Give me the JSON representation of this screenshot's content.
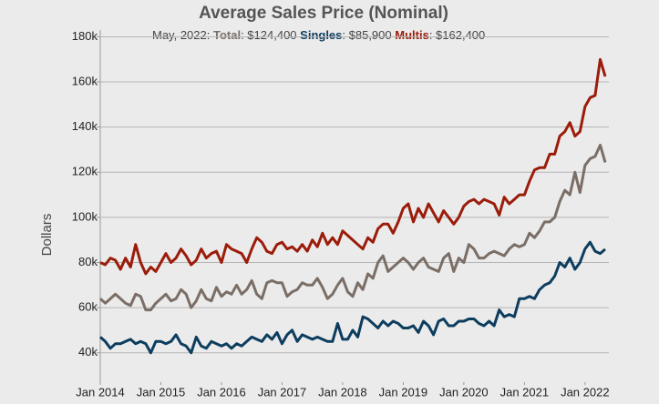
{
  "chart_data": {
    "type": "line",
    "title": "Average Sales Price (Nominal)",
    "annotation": {
      "date": "May, 2022:",
      "values": [
        ": $124,400",
        ": $85,900",
        ": $162,400"
      ]
    },
    "y_label": "Dollars",
    "x": [
      "2014-01",
      "2014-02",
      "2014-03",
      "2014-04",
      "2014-05",
      "2014-06",
      "2014-07",
      "2014-08",
      "2014-09",
      "2014-10",
      "2014-11",
      "2014-12",
      "2015-01",
      "2015-02",
      "2015-03",
      "2015-04",
      "2015-05",
      "2015-06",
      "2015-07",
      "2015-08",
      "2015-09",
      "2015-10",
      "2015-11",
      "2015-12",
      "2016-01",
      "2016-02",
      "2016-03",
      "2016-04",
      "2016-05",
      "2016-06",
      "2016-07",
      "2016-08",
      "2016-09",
      "2016-10",
      "2016-11",
      "2016-12",
      "2017-01",
      "2017-02",
      "2017-03",
      "2017-04",
      "2017-05",
      "2017-06",
      "2017-07",
      "2017-08",
      "2017-09",
      "2017-10",
      "2017-11",
      "2017-12",
      "2018-01",
      "2018-02",
      "2018-03",
      "2018-04",
      "2018-05",
      "2018-06",
      "2018-07",
      "2018-08",
      "2018-09",
      "2018-10",
      "2018-11",
      "2018-12",
      "2019-01",
      "2019-02",
      "2019-03",
      "2019-04",
      "2019-05",
      "2019-06",
      "2019-07",
      "2019-08",
      "2019-09",
      "2019-10",
      "2019-11",
      "2019-12",
      "2020-01",
      "2020-02",
      "2020-03",
      "2020-04",
      "2020-05",
      "2020-06",
      "2020-07",
      "2020-08",
      "2020-09",
      "2020-10",
      "2020-11",
      "2020-12",
      "2021-01",
      "2021-02",
      "2021-03",
      "2021-04",
      "2021-05",
      "2021-06",
      "2021-07",
      "2021-08",
      "2021-09",
      "2021-10",
      "2021-11",
      "2021-12",
      "2022-01",
      "2022-02",
      "2022-03",
      "2022-04",
      "2022-05"
    ],
    "xlim": [
      "2014-01",
      "2022-05"
    ],
    "xticks": [
      {
        "value": "2014-01",
        "label": "Jan 2014"
      },
      {
        "value": "2015-01",
        "label": "Jan 2015"
      },
      {
        "value": "2016-01",
        "label": "Jan 2016"
      },
      {
        "value": "2017-01",
        "label": "Jan 2017"
      },
      {
        "value": "2018-01",
        "label": "Jan 2018"
      },
      {
        "value": "2019-01",
        "label": "Jan 2019"
      },
      {
        "value": "2020-01",
        "label": "Jan 2020"
      },
      {
        "value": "2021-01",
        "label": "Jan 2021"
      },
      {
        "value": "2022-01",
        "label": "Jan 2022"
      }
    ],
    "ylim": [
      27000,
      183000
    ],
    "yticks": [
      {
        "value": 40000,
        "label": "40k"
      },
      {
        "value": 60000,
        "label": "60k"
      },
      {
        "value": 80000,
        "label": "80k"
      },
      {
        "value": 100000,
        "label": "100k"
      },
      {
        "value": 120000,
        "label": "120k"
      },
      {
        "value": 140000,
        "label": "140k"
      },
      {
        "value": 160000,
        "label": "160k"
      },
      {
        "value": 180000,
        "label": "180k"
      }
    ],
    "grid": true,
    "series": [
      {
        "name": "Total",
        "color": "#7a6e66",
        "values": [
          64000,
          62000,
          64000,
          66000,
          64000,
          62000,
          61000,
          66000,
          65000,
          59000,
          59000,
          62000,
          64000,
          66000,
          63000,
          64000,
          68000,
          66000,
          60000,
          63000,
          68000,
          64000,
          63000,
          69000,
          65000,
          67000,
          66000,
          70000,
          66000,
          68000,
          72000,
          66000,
          64000,
          71000,
          72000,
          71000,
          71000,
          65000,
          67000,
          68000,
          71000,
          70000,
          70000,
          73000,
          69000,
          64000,
          66000,
          70000,
          73000,
          67000,
          65000,
          71000,
          68000,
          75000,
          73000,
          80000,
          83000,
          76000,
          78000,
          80000,
          82000,
          80000,
          77000,
          80000,
          82000,
          78000,
          77000,
          76000,
          82000,
          84000,
          76000,
          82000,
          80000,
          88000,
          86000,
          82000,
          82000,
          84000,
          85000,
          84000,
          83000,
          86000,
          88000,
          87000,
          88000,
          93000,
          91000,
          94000,
          98000,
          98000,
          100000,
          107000,
          112000,
          110000,
          120000,
          111000,
          123000,
          126000,
          127000,
          132000,
          124400
        ]
      },
      {
        "name": "Singles",
        "color": "#0d3d5e",
        "values": [
          47000,
          45000,
          42000,
          44000,
          44000,
          45000,
          46000,
          44000,
          45000,
          44000,
          40000,
          45000,
          45000,
          44000,
          45000,
          48000,
          44000,
          43000,
          40000,
          47000,
          43000,
          42000,
          45000,
          44000,
          43000,
          44000,
          42000,
          44000,
          43000,
          45000,
          47000,
          46000,
          45000,
          48000,
          46000,
          49000,
          44000,
          48000,
          50000,
          45000,
          48000,
          47000,
          46000,
          47000,
          46000,
          45000,
          45000,
          53000,
          46000,
          46000,
          50000,
          47000,
          56000,
          55000,
          53000,
          51000,
          54000,
          52000,
          54000,
          53000,
          51000,
          51000,
          52000,
          49000,
          54000,
          52000,
          48000,
          54000,
          55000,
          52000,
          52000,
          54000,
          54000,
          55000,
          55000,
          53000,
          52000,
          54000,
          52000,
          59000,
          56000,
          57000,
          56000,
          64000,
          64000,
          65000,
          64000,
          68000,
          70000,
          71000,
          74000,
          80000,
          78000,
          82000,
          77000,
          80000,
          86000,
          89000,
          85000,
          84000,
          85900
        ]
      },
      {
        "name": "Multis",
        "color": "#9b1c0a",
        "values": [
          80000,
          79000,
          82000,
          81000,
          77000,
          82000,
          78000,
          88000,
          80000,
          75000,
          78000,
          76000,
          80000,
          84000,
          80000,
          82000,
          86000,
          83000,
          79000,
          81000,
          86000,
          82000,
          84000,
          85000,
          80000,
          88000,
          86000,
          85000,
          84000,
          80000,
          86000,
          91000,
          89000,
          85000,
          84000,
          88000,
          89000,
          86000,
          87000,
          85000,
          88000,
          85000,
          90000,
          87000,
          93000,
          88000,
          91000,
          88000,
          94000,
          92000,
          90000,
          88000,
          86000,
          91000,
          89000,
          95000,
          97000,
          97000,
          93000,
          98000,
          104000,
          106000,
          98000,
          104000,
          100000,
          106000,
          102000,
          98000,
          103000,
          100000,
          97000,
          100000,
          105000,
          107000,
          108000,
          106000,
          108000,
          107000,
          106000,
          101000,
          109000,
          106000,
          108000,
          110000,
          110000,
          116000,
          121000,
          122000,
          122000,
          128000,
          128000,
          136000,
          138000,
          142000,
          136000,
          138000,
          149000,
          153000,
          154000,
          170000,
          162400
        ]
      }
    ]
  }
}
